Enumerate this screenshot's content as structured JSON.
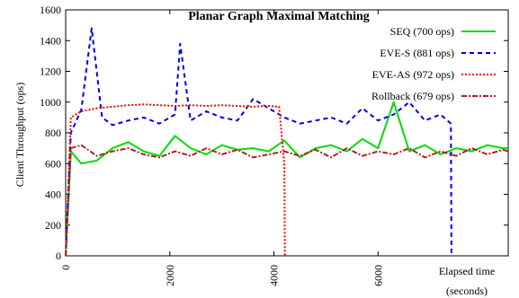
{
  "chart_data": {
    "type": "line",
    "title": "Planar Graph Maximal Matching",
    "xlabel_line1": "Elapsed time",
    "xlabel_line2": "(seconds)",
    "ylabel": "Client Throughput (ops)",
    "xlim": [
      0,
      8500
    ],
    "ylim": [
      0,
      1600
    ],
    "x_ticks": [
      0,
      2000,
      4000,
      6000
    ],
    "x_tick_labels": [
      "0",
      "2000",
      "4000",
      "6000"
    ],
    "y_ticks": [
      0,
      200,
      400,
      600,
      800,
      1000,
      1200,
      1400,
      1600
    ],
    "y_tick_labels": [
      "0",
      "200",
      "400",
      "600",
      "800",
      "1000",
      "1200",
      "1400",
      "1600"
    ],
    "legend_position": "top-right",
    "series": [
      {
        "name": "SEQ (700 ops)",
        "color": "#00dd00",
        "style": "solid",
        "x": [
          0,
          100,
          300,
          600,
          900,
          1200,
          1500,
          1800,
          2100,
          2400,
          2700,
          3000,
          3300,
          3600,
          3900,
          4200,
          4500,
          4800,
          5100,
          5400,
          5700,
          6000,
          6300,
          6600,
          6900,
          7200,
          7500,
          7800,
          8100,
          8400,
          8500
        ],
        "y": [
          0,
          680,
          600,
          620,
          700,
          740,
          680,
          650,
          780,
          700,
          660,
          720,
          690,
          700,
          680,
          750,
          640,
          700,
          720,
          680,
          760,
          700,
          1000,
          680,
          720,
          660,
          700,
          680,
          720,
          700,
          700
        ]
      },
      {
        "name": "EVE-S (881 ops)",
        "color": "#0000dd",
        "style": "dashed",
        "x": [
          0,
          100,
          300,
          500,
          700,
          900,
          1200,
          1500,
          1800,
          2100,
          2200,
          2400,
          2700,
          3000,
          3300,
          3600,
          3900,
          4200,
          4500,
          4800,
          5100,
          5400,
          5700,
          6000,
          6300,
          6600,
          6900,
          7200,
          7400,
          7410,
          7420
        ],
        "y": [
          0,
          800,
          950,
          1480,
          900,
          850,
          880,
          900,
          860,
          920,
          1380,
          880,
          940,
          900,
          880,
          1020,
          960,
          900,
          860,
          880,
          900,
          860,
          960,
          880,
          920,
          1000,
          880,
          920,
          860,
          0,
          0
        ]
      },
      {
        "name": "EVE-AS (972 ops)",
        "color": "#ff0000",
        "style": "dotted",
        "x": [
          0,
          100,
          300,
          600,
          900,
          1200,
          1500,
          1800,
          2100,
          2400,
          2700,
          3000,
          3300,
          3600,
          3900,
          4100,
          4200,
          4210
        ],
        "y": [
          0,
          900,
          940,
          960,
          970,
          980,
          985,
          980,
          975,
          980,
          975,
          980,
          975,
          970,
          975,
          970,
          600,
          0
        ]
      },
      {
        "name": "Rollback (679 ops)",
        "color": "#aa2222",
        "style": "dashdot",
        "x": [
          0,
          100,
          300,
          600,
          900,
          1200,
          1500,
          1800,
          2100,
          2400,
          2700,
          3000,
          3300,
          3600,
          3900,
          4200,
          4500,
          4800,
          5100,
          5400,
          5700,
          6000,
          6300,
          6600,
          6900,
          7200,
          7500,
          7800,
          8100,
          8400,
          8500
        ],
        "y": [
          0,
          700,
          720,
          650,
          680,
          700,
          660,
          640,
          680,
          650,
          700,
          660,
          690,
          640,
          660,
          680,
          650,
          690,
          640,
          700,
          650,
          680,
          660,
          700,
          640,
          680,
          650,
          700,
          660,
          690,
          680
        ]
      }
    ]
  }
}
